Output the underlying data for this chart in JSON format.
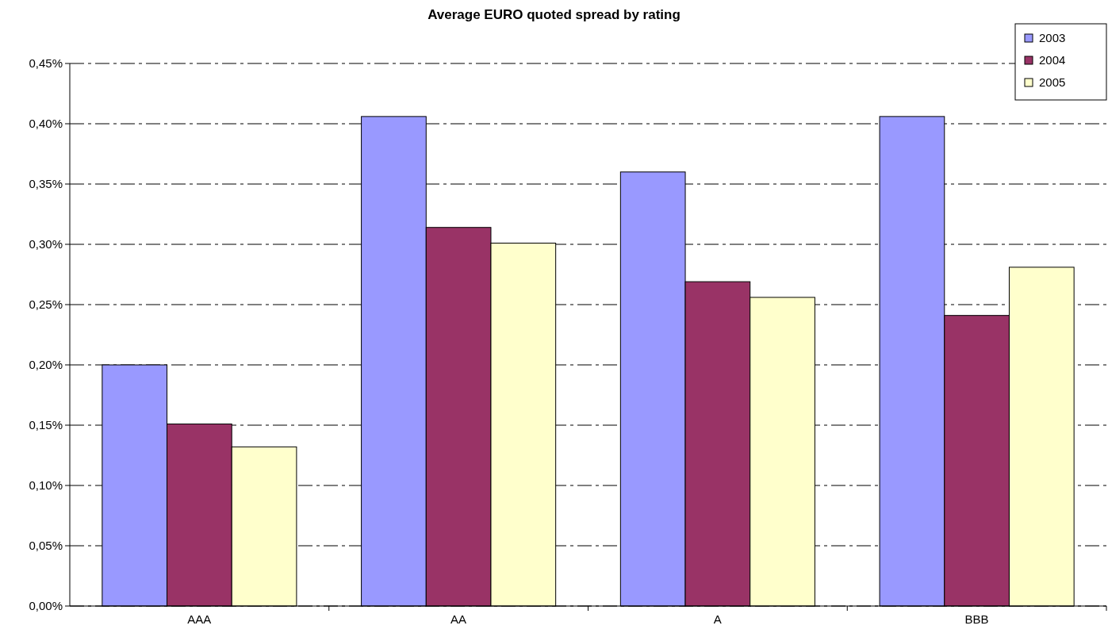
{
  "chart_data": {
    "type": "bar",
    "title": "Average EURO quoted spread by rating",
    "categories": [
      "AAA",
      "AA",
      "A",
      "BBB"
    ],
    "series": [
      {
        "name": "2003",
        "color": "#9999ff",
        "values": [
          0.2,
          0.406,
          0.36,
          0.406
        ]
      },
      {
        "name": "2004",
        "color": "#993366",
        "values": [
          0.151,
          0.314,
          0.269,
          0.241
        ]
      },
      {
        "name": "2005",
        "color": "#ffffcc",
        "values": [
          0.132,
          0.301,
          0.256,
          0.281
        ]
      }
    ],
    "ylim": [
      0,
      0.45
    ],
    "yticks": [
      {
        "value": 0,
        "label": "0,00%"
      },
      {
        "value": 0.05,
        "label": "0,05%"
      },
      {
        "value": 0.1,
        "label": "0,10%"
      },
      {
        "value": 0.15,
        "label": "0,15%"
      },
      {
        "value": 0.2,
        "label": "0,20%"
      },
      {
        "value": 0.25,
        "label": "0,25%"
      },
      {
        "value": 0.3,
        "label": "0,30%"
      },
      {
        "value": 0.35,
        "label": "0,35%"
      },
      {
        "value": 0.4,
        "label": "0,40%"
      },
      {
        "value": 0.45,
        "label": "0,45%"
      }
    ],
    "grid": "y",
    "legend": "top right"
  }
}
